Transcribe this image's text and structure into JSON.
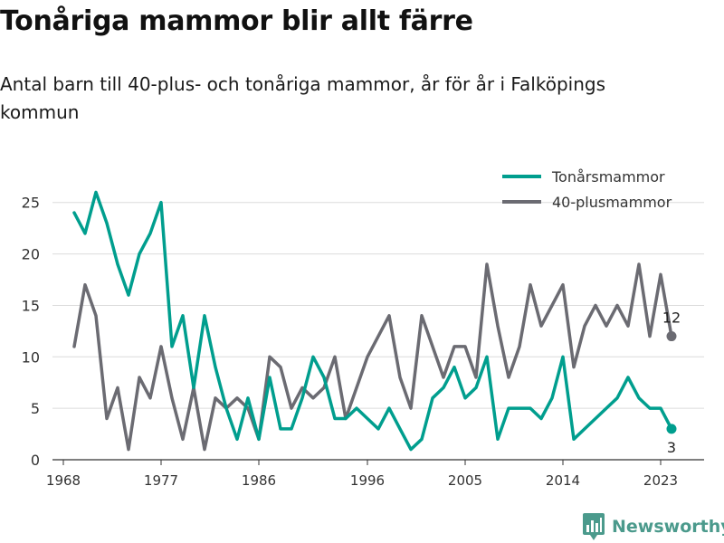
{
  "header": {
    "title": "Tonåriga mammor blir allt färre",
    "subtitle": "Antal barn till 40-plus- och tonåriga mammor, år för år i Falköpings kommun"
  },
  "brand": {
    "name": "Newsworthy",
    "color": "#4b9a8c"
  },
  "chart_data": {
    "type": "line",
    "x": [
      1969,
      1970,
      1971,
      1972,
      1973,
      1974,
      1975,
      1976,
      1977,
      1978,
      1979,
      1980,
      1981,
      1982,
      1983,
      1984,
      1985,
      1986,
      1987,
      1988,
      1989,
      1990,
      1991,
      1992,
      1993,
      1994,
      1995,
      1996,
      1997,
      1998,
      1999,
      2000,
      2001,
      2002,
      2003,
      2004,
      2005,
      2006,
      2007,
      2008,
      2009,
      2010,
      2011,
      2012,
      2013,
      2014,
      2015,
      2016,
      2017,
      2018,
      2019,
      2020,
      2021,
      2022,
      2023,
      2024
    ],
    "x_ticks": [
      1968,
      1977,
      1986,
      1996,
      2005,
      2014,
      2023
    ],
    "xlim": [
      1967,
      2027
    ],
    "y_ticks": [
      0,
      5,
      10,
      15,
      20,
      25
    ],
    "ylim": [
      0,
      27
    ],
    "grid": true,
    "legend": "top-right",
    "series": [
      {
        "name": "Tonårsmammor",
        "color": "#009e8e",
        "values": [
          24,
          22,
          26,
          23,
          19,
          16,
          20,
          22,
          25,
          11,
          14,
          7,
          14,
          9,
          5,
          2,
          6,
          2,
          8,
          3,
          3,
          6,
          10,
          8,
          4,
          4,
          5,
          4,
          3,
          5,
          3,
          1,
          2,
          6,
          7,
          9,
          6,
          7,
          10,
          2,
          5,
          5,
          5,
          4,
          6,
          10,
          2,
          3,
          4,
          5,
          6,
          8,
          6,
          5,
          5,
          3
        ],
        "end_label": "3"
      },
      {
        "name": "40-plusmammor",
        "color": "#6b6b72",
        "values": [
          11,
          17,
          14,
          4,
          7,
          1,
          8,
          6,
          11,
          6,
          2,
          7,
          1,
          6,
          5,
          6,
          5,
          2,
          10,
          9,
          5,
          7,
          6,
          7,
          10,
          4,
          7,
          10,
          12,
          14,
          8,
          5,
          14,
          11,
          8,
          11,
          11,
          8,
          19,
          13,
          8,
          11,
          17,
          13,
          15,
          17,
          9,
          13,
          15,
          13,
          15,
          13,
          19,
          12,
          18,
          12
        ],
        "end_label": "12"
      }
    ]
  }
}
